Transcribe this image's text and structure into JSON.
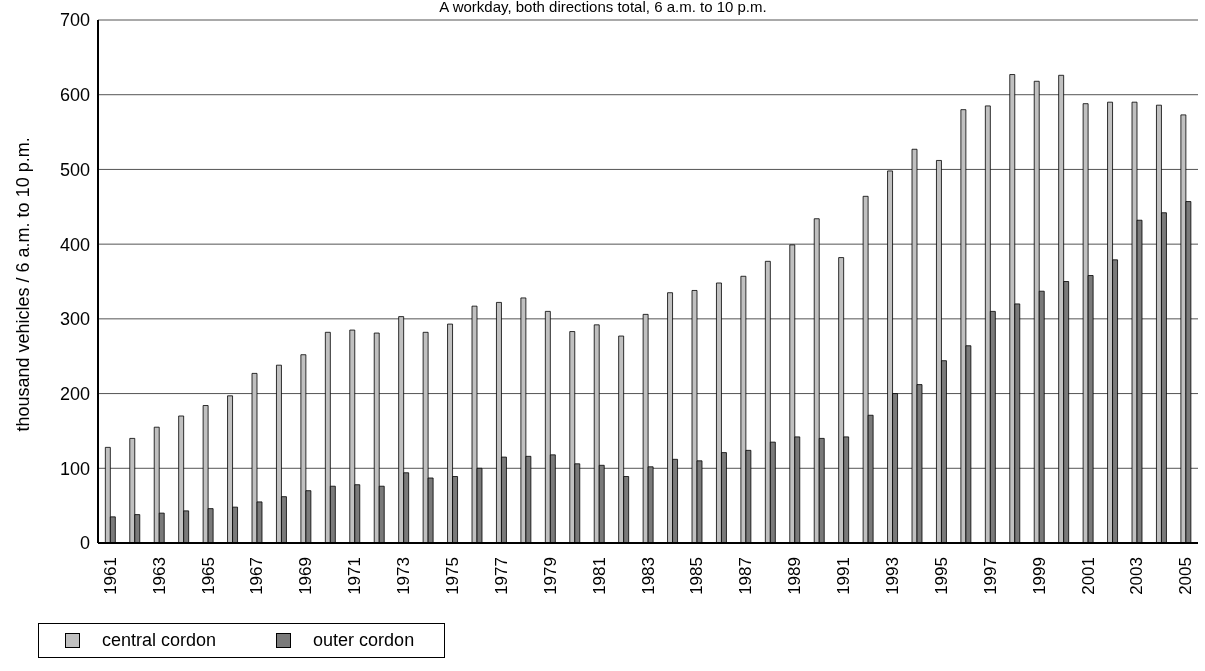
{
  "chart_data": {
    "type": "bar",
    "title": "A workday, both directions total, 6 a.m. to 10 p.m.",
    "ylabel": "thousand vehicles / 6 a.m. to 10 p.m.",
    "categories": [
      "1961",
      null,
      "1963",
      null,
      "1965",
      null,
      "1967",
      null,
      "1969",
      null,
      "1971",
      null,
      "1973",
      null,
      "1975",
      null,
      "1977",
      null,
      "1979",
      null,
      "1981",
      null,
      "1983",
      null,
      "1985",
      null,
      "1987",
      null,
      "1989",
      null,
      "1991",
      null,
      "1993",
      null,
      "1995",
      null,
      "1997",
      null,
      "1999",
      null,
      "2001",
      null,
      "2003",
      null,
      "2005"
    ],
    "series": [
      {
        "name": "central cordon",
        "color": "#c0c0c0",
        "values": [
          128,
          140,
          155,
          170,
          184,
          197,
          227,
          238,
          252,
          282,
          285,
          281,
          303,
          282,
          293,
          317,
          322,
          328,
          310,
          283,
          292,
          277,
          306,
          335,
          338,
          348,
          357,
          377,
          399,
          434,
          382,
          464,
          498,
          527,
          512,
          580,
          585,
          627,
          618,
          626,
          588,
          590,
          590,
          586,
          573
        ]
      },
      {
        "name": "outer cordon",
        "color": "#7a7a7a",
        "values": [
          35,
          38,
          40,
          43,
          46,
          48,
          55,
          62,
          70,
          76,
          78,
          76,
          94,
          87,
          89,
          100,
          115,
          116,
          118,
          106,
          104,
          89,
          102,
          112,
          110,
          121,
          124,
          135,
          142,
          140,
          142,
          171,
          200,
          212,
          244,
          264,
          310,
          320,
          337,
          350,
          358,
          379,
          432,
          442,
          457
        ]
      }
    ],
    "ylim": [
      0,
      700
    ],
    "yticks": [
      0,
      100,
      200,
      300,
      400,
      500,
      600,
      700
    ],
    "grid": "y",
    "legend": "bottom left"
  }
}
